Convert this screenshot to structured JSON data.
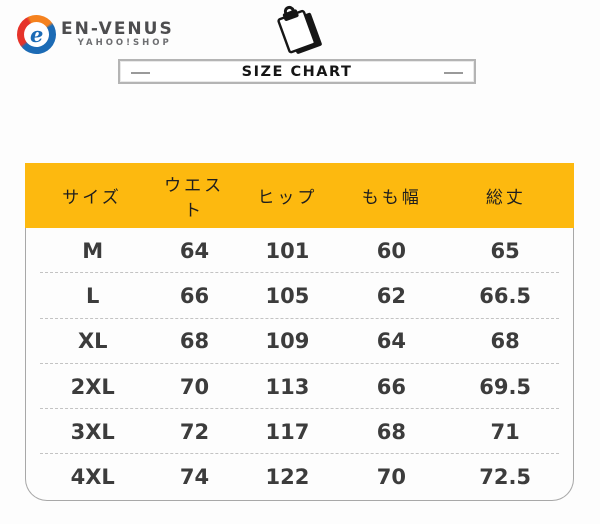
{
  "colors": {
    "header_bg": "#fdb90f",
    "logo_red": "#e6332a",
    "logo_orange": "#f5821f",
    "logo_blue": "#1c6bb5"
  },
  "logo": {
    "brand": "EN-VENUS",
    "sub": "YAHOO!SHOP",
    "icon_letter": "e"
  },
  "title": {
    "label": "SIZE CHART"
  },
  "chart_data": {
    "type": "table",
    "title": "SIZE CHART",
    "columns": [
      "サイズ",
      "ウエスト",
      "ヒップ",
      "もも幅",
      "総丈"
    ],
    "rows": [
      [
        "M",
        "64",
        "101",
        "60",
        "65"
      ],
      [
        "L",
        "66",
        "105",
        "62",
        "66.5"
      ],
      [
        "XL",
        "68",
        "109",
        "64",
        "68"
      ],
      [
        "2XL",
        "70",
        "113",
        "66",
        "69.5"
      ],
      [
        "3XL",
        "72",
        "117",
        "68",
        "71"
      ],
      [
        "4XL",
        "74",
        "122",
        "70",
        "72.5"
      ]
    ]
  }
}
